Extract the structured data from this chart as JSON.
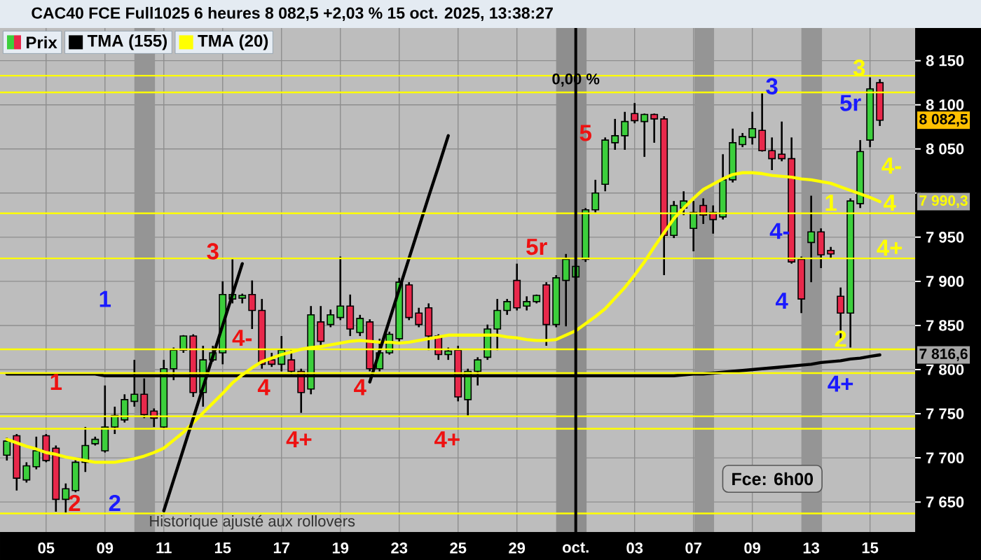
{
  "chart_data": {
    "type": "candlestick",
    "title": "CAC40 FCE Full1025 6 heures 8 082,5 +2,03 % 15 oct. 2025, 13:38:27",
    "categories": [
      null,
      null,
      null,
      null,
      "05",
      null,
      null,
      null,
      null,
      null,
      "09",
      null,
      null,
      null,
      null,
      null,
      "11",
      null,
      null,
      null,
      null,
      null,
      "15",
      null,
      null,
      null,
      null,
      null,
      "17",
      null,
      null,
      null,
      null,
      null,
      "19",
      null,
      null,
      null,
      null,
      null,
      "23",
      null,
      null,
      null,
      null,
      null,
      "25",
      null,
      null,
      null,
      null,
      null,
      "29",
      null,
      null,
      null,
      null,
      null,
      "oct.",
      null,
      null,
      null,
      null,
      null,
      "03",
      null,
      null,
      null,
      null,
      null,
      "07",
      null,
      null,
      null,
      null,
      null,
      "09",
      null,
      null,
      null,
      null,
      null,
      "13",
      null,
      null,
      null,
      null,
      null,
      "15",
      null,
      null,
      null,
      null
    ],
    "series": [
      {
        "name": "Prix",
        "ohlc": [
          [
            7703,
            7723,
            7697,
            7719
          ],
          [
            7725,
            7727,
            7663,
            7677
          ],
          [
            7675,
            7695,
            7672,
            7691
          ],
          [
            7690,
            7724,
            7687,
            7708
          ],
          [
            7725,
            7727,
            7695,
            7697
          ],
          [
            7711,
            7714,
            7639,
            7653
          ],
          [
            7653,
            7671,
            7638,
            7665
          ],
          [
            7663,
            7700,
            7661,
            7695
          ],
          [
            7695,
            7735,
            7684,
            7714
          ],
          [
            7716,
            7724,
            7714,
            7721
          ],
          [
            7708,
            7782,
            7706,
            7735
          ],
          [
            7735,
            7758,
            7727,
            7748
          ],
          [
            7743,
            7772,
            7740,
            7766
          ],
          [
            7764,
            7811,
            7758,
            7772
          ],
          [
            7772,
            7790,
            7745,
            7749
          ],
          [
            7753,
            7756,
            7735,
            7745
          ],
          [
            7735,
            7811,
            7733,
            7801
          ],
          [
            7801,
            7825,
            7788,
            7822
          ],
          [
            7822,
            7839,
            7819,
            7838
          ],
          [
            7838,
            7840,
            7769,
            7774
          ],
          [
            7774,
            7827,
            7758,
            7811
          ],
          [
            7811,
            7827,
            7809,
            7819
          ],
          [
            7819,
            7900,
            7806,
            7885
          ],
          [
            7880,
            7925,
            7875,
            7885
          ],
          [
            7881,
            7886,
            7875,
            7884
          ],
          [
            7885,
            7901,
            7846,
            7867
          ],
          [
            7867,
            7880,
            7801,
            7806
          ],
          [
            7811,
            7819,
            7803,
            7806
          ],
          [
            7806,
            7838,
            7798,
            7822
          ],
          [
            7811,
            7822,
            7795,
            7798
          ],
          [
            7798,
            7801,
            7751,
            7774
          ],
          [
            7778,
            7872,
            7772,
            7862
          ],
          [
            7854,
            7872,
            7828,
            7832
          ],
          [
            7851,
            7868,
            7848,
            7862
          ],
          [
            7859,
            7928,
            7856,
            7872
          ],
          [
            7872,
            7885,
            7838,
            7846
          ],
          [
            7842,
            7862,
            7838,
            7858
          ],
          [
            7854,
            7857,
            7798,
            7801
          ],
          [
            7801,
            7835,
            7798,
            7819
          ],
          [
            7819,
            7843,
            7817,
            7840
          ],
          [
            7835,
            7904,
            7832,
            7899
          ],
          [
            7896,
            7899,
            7856,
            7859
          ],
          [
            7864,
            7870,
            7848,
            7851
          ],
          [
            7870,
            7875,
            7822,
            7838
          ],
          [
            7838,
            7840,
            7811,
            7817
          ],
          [
            7817,
            7825,
            7811,
            7821
          ],
          [
            7822,
            7827,
            7764,
            7769
          ],
          [
            7766,
            7801,
            7748,
            7798
          ],
          [
            7798,
            7814,
            7782,
            7811
          ],
          [
            7814,
            7851,
            7811,
            7846
          ],
          [
            7846,
            7880,
            7822,
            7867
          ],
          [
            7867,
            7880,
            7862,
            7877
          ],
          [
            7901,
            7920,
            7867,
            7870
          ],
          [
            7872,
            7883,
            7867,
            7877
          ],
          [
            7877,
            7885,
            7875,
            7884
          ],
          [
            7896,
            7899,
            7827,
            7851
          ],
          [
            7851,
            7907,
            7848,
            7904
          ],
          [
            7901,
            7931,
            7849,
            7925
          ],
          [
            7905,
            7928,
            7867,
            7917
          ],
          [
            7925,
            7983,
            7922,
            7981
          ],
          [
            7981,
            8015,
            7978,
            8000
          ],
          [
            8010,
            8063,
            8002,
            8060
          ],
          [
            8057,
            8084,
            8049,
            8065
          ],
          [
            8065,
            8092,
            8049,
            8081
          ],
          [
            8090,
            8102,
            8079,
            8082
          ],
          [
            8081,
            8090,
            8041,
            8089
          ],
          [
            8089,
            8090,
            8057,
            8084
          ],
          [
            8084,
            8087,
            7907,
            7952
          ],
          [
            7952,
            7991,
            7949,
            7986
          ],
          [
            7983,
            8002,
            7975,
            7991
          ],
          [
            7960,
            7991,
            7934,
            7978
          ],
          [
            7986,
            7994,
            7965,
            7975
          ],
          [
            7978,
            7986,
            7954,
            7970
          ],
          [
            7973,
            8044,
            7970,
            8015
          ],
          [
            8015,
            8073,
            8012,
            8057
          ],
          [
            8055,
            8068,
            8052,
            8064
          ],
          [
            8063,
            8092,
            8055,
            8073
          ],
          [
            8071,
            8113,
            8047,
            8048
          ],
          [
            8048,
            8063,
            8026,
            8039
          ],
          [
            8044,
            8081,
            8036,
            8039
          ],
          [
            8039,
            8063,
            7920,
            7922
          ],
          [
            7925,
            7928,
            7864,
            7880
          ],
          [
            7944,
            7997,
            7899,
            7956
          ],
          [
            7956,
            7960,
            7915,
            7930
          ],
          [
            7935,
            7939,
            7926,
            7931
          ],
          [
            7883,
            7893,
            7835,
            7864
          ],
          [
            7864,
            7994,
            7825,
            7991
          ],
          [
            7988,
            8060,
            7983,
            8047
          ],
          [
            8060,
            8131,
            8052,
            8118
          ],
          [
            8125,
            8129,
            8076,
            8082.5
          ],
          null,
          null,
          null
        ],
        "colors": [
          "#3ccf3c",
          "#e8284b",
          "#3ccf3c",
          "#3ccf3c",
          "#e8284b",
          "#e8284b",
          "#3ccf3c",
          "#3ccf3c",
          "#3ccf3c",
          "#3ccf3c",
          "#3ccf3c",
          "#3ccf3c",
          "#3ccf3c",
          "#3ccf3c",
          "#e8284b",
          "#e8284b",
          "#3ccf3c",
          "#3ccf3c",
          "#3ccf3c",
          "#e8284b",
          "#3ccf3c",
          "#3ccf3c",
          "#3ccf3c",
          "#3ccf3c",
          "#3ccf3c",
          "#e8284b",
          "#e8284b",
          "#e8284b",
          "#3ccf3c",
          "#e8284b",
          "#e8284b",
          "#3ccf3c",
          "#e8284b",
          "#3ccf3c",
          "#3ccf3c",
          "#e8284b",
          "#3ccf3c",
          "#e8284b",
          "#3ccf3c",
          "#3ccf3c",
          "#3ccf3c",
          "#e8284b",
          "#e8284b",
          "#e8284b",
          "#e8284b",
          "#3ccf3c",
          "#e8284b",
          "#3ccf3c",
          "#3ccf3c",
          "#3ccf3c",
          "#3ccf3c",
          "#3ccf3c",
          "#e8284b",
          "#3ccf3c",
          "#3ccf3c",
          "#e8284b",
          "#3ccf3c",
          "#3ccf3c",
          "#3ccf3c",
          "#3ccf3c",
          "#3ccf3c",
          "#3ccf3c",
          "#3ccf3c",
          "#3ccf3c",
          "#e8284b",
          "#3ccf3c",
          "#e8284b",
          "#e8284b",
          "#3ccf3c",
          "#3ccf3c",
          "#3ccf3c",
          "#e8284b",
          "#e8284b",
          "#3ccf3c",
          "#3ccf3c",
          "#3ccf3c",
          "#3ccf3c",
          "#e8284b",
          "#e8284b",
          "#e8284b",
          "#e8284b",
          "#e8284b",
          "#3ccf3c",
          "#e8284b",
          "#e8284b",
          "#e8284b",
          "#3ccf3c",
          "#3ccf3c",
          "#3ccf3c",
          "#e8284b",
          null,
          null,
          null
        ]
      },
      {
        "name": "TMA (155)",
        "type": "line",
        "color": "#000000",
        "values": [
          7795,
          7795,
          7795,
          7795,
          7795,
          7795,
          7795,
          7795,
          7795,
          7795,
          7793,
          7793,
          7793,
          7793,
          7793,
          7793,
          7793,
          7793,
          7793,
          7793,
          7793,
          7793,
          7793,
          7793,
          7793,
          7793,
          7793,
          7793,
          7793,
          7793,
          7793,
          7793,
          7793,
          7793,
          7793,
          7793,
          7793,
          7793,
          7793,
          7793,
          7793,
          7793,
          7793,
          7793,
          7793,
          7793,
          7793,
          7793,
          7793,
          7793,
          7793,
          7793,
          7793,
          7793,
          7793,
          7793,
          7793,
          7793,
          7793,
          7793,
          7793,
          7793,
          7793,
          7793,
          7793,
          7793,
          7793,
          7793,
          7793,
          7794,
          7795,
          7795,
          7796,
          7797,
          7798,
          7799,
          7800,
          7801,
          7802,
          7803,
          7804,
          7805,
          7806,
          7808,
          7809,
          7810,
          7812,
          7813,
          7815,
          7816.6,
          null,
          null,
          null
        ]
      },
      {
        "name": "TMA (20)",
        "type": "line",
        "color": "#ffff00",
        "values": [
          7721,
          7717,
          7713,
          7710,
          7706,
          7704,
          7701,
          7699,
          7697,
          7695,
          7695,
          7695,
          7697,
          7699,
          7702,
          7706,
          7711,
          7720,
          7729,
          7740,
          7751,
          7762,
          7773,
          7785,
          7794,
          7802,
          7809,
          7813,
          7817,
          7820,
          7823,
          7825,
          7826,
          7828,
          7830,
          7832,
          7833,
          7832,
          7831,
          7831,
          7830,
          7831,
          7833,
          7835,
          7837,
          7839,
          7839,
          7839,
          7839,
          7839,
          7839,
          7837,
          7836,
          7834,
          7833,
          7833,
          7834,
          7839,
          7844,
          7852,
          7860,
          7869,
          7881,
          7893,
          7907,
          7922,
          7939,
          7955,
          7971,
          7983,
          7994,
          8004,
          8010,
          8016,
          8021,
          8023,
          8023,
          8022,
          8020,
          8019,
          8018,
          8016,
          8015,
          8013,
          8011,
          8007,
          8003,
          7999,
          7995,
          7990.3,
          null,
          null,
          null
        ]
      },
      {
        "type": "line",
        "color": "#000000",
        "values": [
          null,
          null,
          null,
          null,
          null,
          null,
          null,
          null,
          null,
          null,
          null,
          null,
          null,
          null,
          null,
          null,
          7640,
          7675,
          7710,
          7745,
          7780,
          7815,
          7850,
          7885,
          7920,
          null,
          null,
          null,
          null,
          null,
          null,
          null,
          null,
          null,
          null,
          null,
          null,
          null,
          null,
          null,
          null,
          null,
          null,
          null,
          null,
          null,
          null,
          null,
          null,
          null,
          null,
          null,
          null,
          null,
          null,
          null,
          null,
          null,
          null,
          null,
          null,
          null,
          null,
          null,
          null,
          null,
          null,
          null,
          null,
          null,
          null,
          null,
          null,
          null,
          null,
          null,
          null,
          null,
          null,
          null,
          null,
          null,
          null,
          null,
          null,
          null,
          null,
          null,
          null,
          null,
          null,
          null,
          null
        ]
      },
      {
        "type": "line",
        "color": "#000000",
        "values": [
          null,
          null,
          null,
          null,
          null,
          null,
          null,
          null,
          null,
          null,
          null,
          null,
          null,
          null,
          null,
          null,
          null,
          null,
          null,
          null,
          null,
          null,
          null,
          null,
          null,
          null,
          null,
          null,
          null,
          null,
          null,
          null,
          null,
          null,
          null,
          null,
          null,
          7786,
          7821,
          7856,
          7891,
          7926,
          7961,
          7996,
          8030,
          8065,
          null,
          null,
          null,
          null,
          null,
          null,
          null,
          null,
          null,
          null,
          null,
          null,
          null,
          null,
          null,
          null,
          null,
          null,
          null,
          null,
          null,
          null,
          null,
          null,
          null,
          null,
          null,
          null,
          null,
          null,
          null,
          null,
          null,
          null,
          null,
          null,
          null,
          null,
          null,
          null,
          null,
          null,
          null,
          null,
          null,
          null,
          null
        ]
      }
    ],
    "ylim": [
      7616,
      8187
    ],
    "yticks": [
      {
        "value": 7650,
        "label": "7 650"
      },
      {
        "value": 7700,
        "label": "7 700"
      },
      {
        "value": 7750,
        "label": "7 750"
      },
      {
        "value": 7800,
        "label": "7 800"
      },
      {
        "value": 7850,
        "label": "7 850"
      },
      {
        "value": 7900,
        "label": "7 900"
      },
      {
        "value": 7950,
        "label": "7 950"
      },
      {
        "value": 8000,
        "label": null
      },
      {
        "value": 8050,
        "label": "8 050"
      },
      {
        "value": 8100,
        "label": "8 100"
      },
      {
        "value": 8150,
        "label": "8 150"
      }
    ],
    "grid": true,
    "legend": "top left",
    "ref_lines": [
      {
        "axis": "y",
        "value": 8133,
        "color": "#ffff00"
      },
      {
        "axis": "y",
        "value": 8114,
        "color": "#ffff00"
      },
      {
        "axis": "y",
        "value": 7977,
        "color": "#ffff00"
      },
      {
        "axis": "y",
        "value": 7926,
        "color": "#ffff00"
      },
      {
        "axis": "y",
        "value": 7823,
        "color": "#ffff00"
      },
      {
        "axis": "y",
        "value": 7796,
        "color": "#ffff00"
      },
      {
        "axis": "y",
        "value": 7747,
        "color": "#ffff00"
      },
      {
        "axis": "y",
        "value": 7733,
        "color": "#ffff00"
      },
      {
        "axis": "y",
        "value": 7637,
        "color": "#ffff00"
      },
      {
        "axis": "x",
        "value": "oct.",
        "color": "#000000"
      }
    ],
    "annotations": [
      "Historique ajusté aux rollovers",
      "Fce: 6h00",
      "1",
      "2",
      "3",
      "4-",
      "4",
      "4+",
      "4",
      "4+",
      "5r",
      "5",
      "1",
      "2",
      "3",
      "4-",
      "4",
      "5r",
      "4+",
      "3",
      "4-",
      "1",
      "4",
      "4+",
      "2",
      {
        "text": "0,00 %",
        "x": "oct.",
        "y": 8128
      },
      {
        "text": "8 082,5",
        "y": 8082.5
      },
      {
        "text": "7 990,3",
        "y": 7990.3
      },
      {
        "text": "7 816,6",
        "y": 7816.6
      }
    ]
  }
}
